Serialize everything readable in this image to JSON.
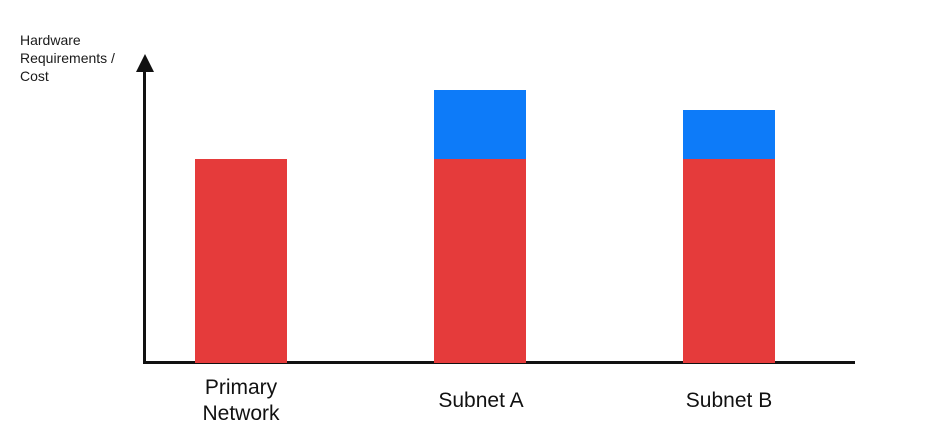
{
  "chart_data": {
    "type": "bar",
    "stacked": true,
    "title": "",
    "ylabel": "Hardware\nRequirements /\nCost",
    "xlabel": "",
    "categories": [
      "Primary Network",
      "Subnet A",
      "Subnet B"
    ],
    "series": [
      {
        "name": "red-base",
        "color": "#E53B3B",
        "values": [
          50,
          50,
          50
        ]
      },
      {
        "name": "blue-overhead",
        "color": "#0D7BF9",
        "values": [
          0,
          17,
          12
        ]
      }
    ],
    "ylim": [
      0,
      75
    ],
    "gridlines": false,
    "legend_position": "none",
    "y_axis_arrow": true,
    "axis_color": "#111111",
    "background_color": "#ffffff"
  }
}
